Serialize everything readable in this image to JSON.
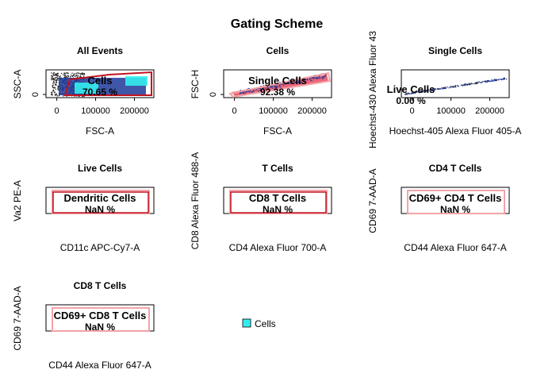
{
  "title": "Gating Scheme",
  "legend": {
    "label": "Cells",
    "color": "#33eeee"
  },
  "colors": {
    "gate_dark": "#c1121f",
    "gate_light": "#f4a3a8",
    "density_low": "#1f3a9a",
    "density_high": "#33eeee",
    "events": "#222222"
  },
  "chart_data": [
    {
      "type": "scatter",
      "title": "All Events",
      "xlabel": "FSC-A",
      "ylabel": "SSC-A",
      "xticks": [
        "0",
        "100000",
        "200000"
      ],
      "yticks": [
        "0"
      ],
      "gate": {
        "name": "Cells",
        "percent": "70.65 %"
      }
    },
    {
      "type": "scatter",
      "title": "Cells",
      "xlabel": "FSC-A",
      "ylabel": "FSC-H",
      "xticks": [
        "0",
        "100000",
        "200000"
      ],
      "yticks": [
        "0"
      ],
      "gate": {
        "name": "Single Cells",
        "percent": "92.38 %"
      }
    },
    {
      "type": "scatter",
      "title": "Single Cells",
      "xlabel": "Hoechst-405 Alexa Fluor 405-A",
      "ylabel": "Hoechst-430 Alexa Fluor 43",
      "xticks": [
        "0",
        "100000",
        "200000"
      ],
      "yticks": [],
      "gate": {
        "name": "Live Cells",
        "percent": "0.00 %"
      }
    },
    {
      "type": "scatter",
      "title": "Live Cells",
      "xlabel": "CD11c APC-Cy7-A",
      "ylabel": "Va2 PE-A",
      "gate": {
        "name": "Dendritic Cells",
        "percent": "NaN %"
      }
    },
    {
      "type": "scatter",
      "title": "T Cells",
      "xlabel": "CD4 Alexa Fluor 700-A",
      "ylabel": "CD8 Alexa Fluor 488-A",
      "gate": {
        "name": "CD8 T Cells",
        "percent": "NaN %"
      }
    },
    {
      "type": "scatter",
      "title": "CD4 T Cells",
      "xlabel": "CD44 Alexa Fluor 647-A",
      "ylabel": "CD69 7-AAD-A",
      "gate": {
        "name": "CD69+ CD4 T Cells",
        "percent": "NaN %"
      }
    },
    {
      "type": "scatter",
      "title": "CD8 T Cells",
      "xlabel": "CD44 Alexa Fluor 647-A",
      "ylabel": "CD69 7-AAD-A",
      "gate": {
        "name": "CD69+ CD8 T Cells",
        "percent": "NaN %"
      }
    }
  ]
}
